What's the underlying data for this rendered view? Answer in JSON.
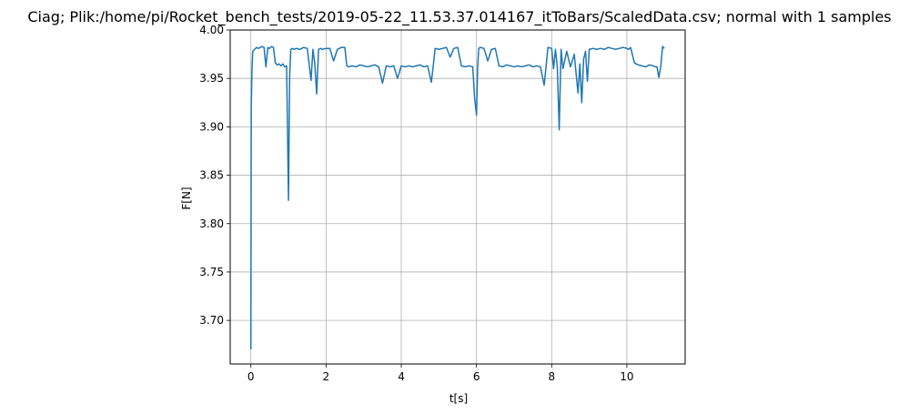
{
  "chart_data": {
    "type": "line",
    "title": "Ciag; Plik:/home/pi/Rocket_bench_tests/2019-05-22_11.53.37.014167_itToBars/ScaledData.csv; normal with 1 samples",
    "xlabel": "t[s]",
    "ylabel": "F[N]",
    "xlim": [
      -0.55,
      11.55
    ],
    "ylim": [
      3.655,
      4.0
    ],
    "grid": true,
    "x_ticks": [
      0,
      2,
      4,
      6,
      8,
      10
    ],
    "x_tick_labels": [
      "0",
      "2",
      "4",
      "6",
      "8",
      "10"
    ],
    "y_ticks": [
      3.7,
      3.75,
      3.8,
      3.85,
      3.9,
      3.95,
      4.0
    ],
    "y_tick_labels": [
      "3.70",
      "3.75",
      "3.80",
      "3.85",
      "3.90",
      "3.95",
      "4.00"
    ],
    "series": [
      {
        "color": "#1f77b4",
        "x": [
          0.0,
          0.01,
          0.03,
          0.05,
          0.1,
          0.15,
          0.2,
          0.25,
          0.3,
          0.35,
          0.4,
          0.45,
          0.5,
          0.55,
          0.6,
          0.65,
          0.7,
          0.75,
          0.8,
          0.85,
          0.9,
          0.95,
          1.0,
          1.03,
          1.06,
          1.1,
          1.15,
          1.2,
          1.3,
          1.4,
          1.5,
          1.6,
          1.65,
          1.7,
          1.75,
          1.8,
          1.85,
          1.9,
          2.0,
          2.1,
          2.2,
          2.3,
          2.4,
          2.5,
          2.55,
          2.6,
          2.7,
          2.8,
          2.9,
          3.0,
          3.1,
          3.2,
          3.3,
          3.4,
          3.5,
          3.6,
          3.7,
          3.8,
          3.9,
          4.0,
          4.1,
          4.2,
          4.3,
          4.4,
          4.5,
          4.6,
          4.7,
          4.8,
          4.85,
          4.9,
          5.0,
          5.1,
          5.2,
          5.3,
          5.4,
          5.5,
          5.6,
          5.7,
          5.8,
          5.9,
          5.95,
          6.0,
          6.03,
          6.06,
          6.1,
          6.2,
          6.3,
          6.4,
          6.5,
          6.6,
          6.7,
          6.8,
          6.9,
          7.0,
          7.1,
          7.2,
          7.3,
          7.4,
          7.5,
          7.6,
          7.7,
          7.8,
          7.85,
          7.9,
          8.0,
          8.05,
          8.1,
          8.15,
          8.2,
          8.25,
          8.3,
          8.4,
          8.5,
          8.6,
          8.7,
          8.75,
          8.8,
          8.85,
          8.9,
          8.95,
          9.0,
          9.1,
          9.2,
          9.3,
          9.4,
          9.5,
          9.6,
          9.7,
          9.8,
          9.9,
          10.0,
          10.05,
          10.1,
          10.2,
          10.3,
          10.4,
          10.5,
          10.6,
          10.7,
          10.75,
          10.8,
          10.85,
          10.9,
          10.95,
          11.0
        ],
        "y": [
          3.67,
          3.92,
          3.96,
          3.978,
          3.98,
          3.982,
          3.981,
          3.982,
          3.983,
          3.982,
          3.962,
          3.982,
          3.981,
          3.983,
          3.982,
          3.966,
          3.964,
          3.965,
          3.963,
          3.965,
          3.962,
          3.963,
          3.824,
          3.95,
          3.98,
          3.981,
          3.98,
          3.981,
          3.98,
          3.982,
          3.981,
          3.948,
          3.98,
          3.965,
          3.934,
          3.98,
          3.981,
          3.98,
          3.981,
          3.981,
          3.968,
          3.98,
          3.982,
          3.982,
          3.963,
          3.962,
          3.963,
          3.962,
          3.964,
          3.963,
          3.962,
          3.963,
          3.964,
          3.962,
          3.945,
          3.963,
          3.962,
          3.963,
          3.95,
          3.963,
          3.962,
          3.963,
          3.962,
          3.963,
          3.964,
          3.962,
          3.963,
          3.946,
          3.963,
          3.981,
          3.98,
          3.981,
          3.982,
          3.972,
          3.981,
          3.982,
          3.963,
          3.962,
          3.963,
          3.962,
          3.93,
          3.912,
          3.96,
          3.981,
          3.982,
          3.981,
          3.968,
          3.98,
          3.981,
          3.963,
          3.962,
          3.964,
          3.963,
          3.962,
          3.963,
          3.962,
          3.963,
          3.964,
          3.962,
          3.963,
          3.962,
          3.943,
          3.962,
          3.982,
          3.981,
          3.96,
          3.98,
          3.962,
          3.897,
          3.98,
          3.96,
          3.978,
          3.962,
          3.975,
          3.935,
          3.965,
          3.925,
          3.97,
          3.978,
          3.947,
          3.98,
          3.981,
          3.98,
          3.981,
          3.98,
          3.982,
          3.981,
          3.98,
          3.981,
          3.982,
          3.981,
          3.98,
          3.982,
          3.966,
          3.964,
          3.963,
          3.962,
          3.964,
          3.963,
          3.962,
          3.962,
          3.951,
          3.962,
          3.983,
          3.981
        ]
      }
    ]
  }
}
